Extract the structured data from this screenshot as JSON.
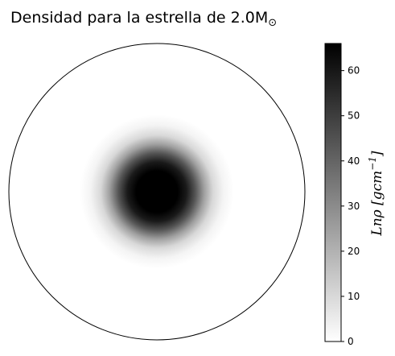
{
  "chart_data": {
    "type": "heatmap",
    "title": "Densidad para la estrella de 2.0M",
    "title_subscript": "⊙",
    "colormap": "grayscale (white = 0, black = max)",
    "colorbar": {
      "label": "Lnρ [gcm",
      "label_exponent": "−1",
      "label_close": "]",
      "range": [
        0,
        66
      ],
      "ticks": [
        0,
        10,
        20,
        30,
        40,
        50,
        60
      ],
      "tick_labels": [
        "0",
        "10",
        "20",
        "30",
        "40",
        "50",
        "60"
      ]
    },
    "profile": {
      "center_value": 66,
      "edge_value": 0,
      "core_fraction": 0.14,
      "falloff_fraction": 0.36
    }
  }
}
